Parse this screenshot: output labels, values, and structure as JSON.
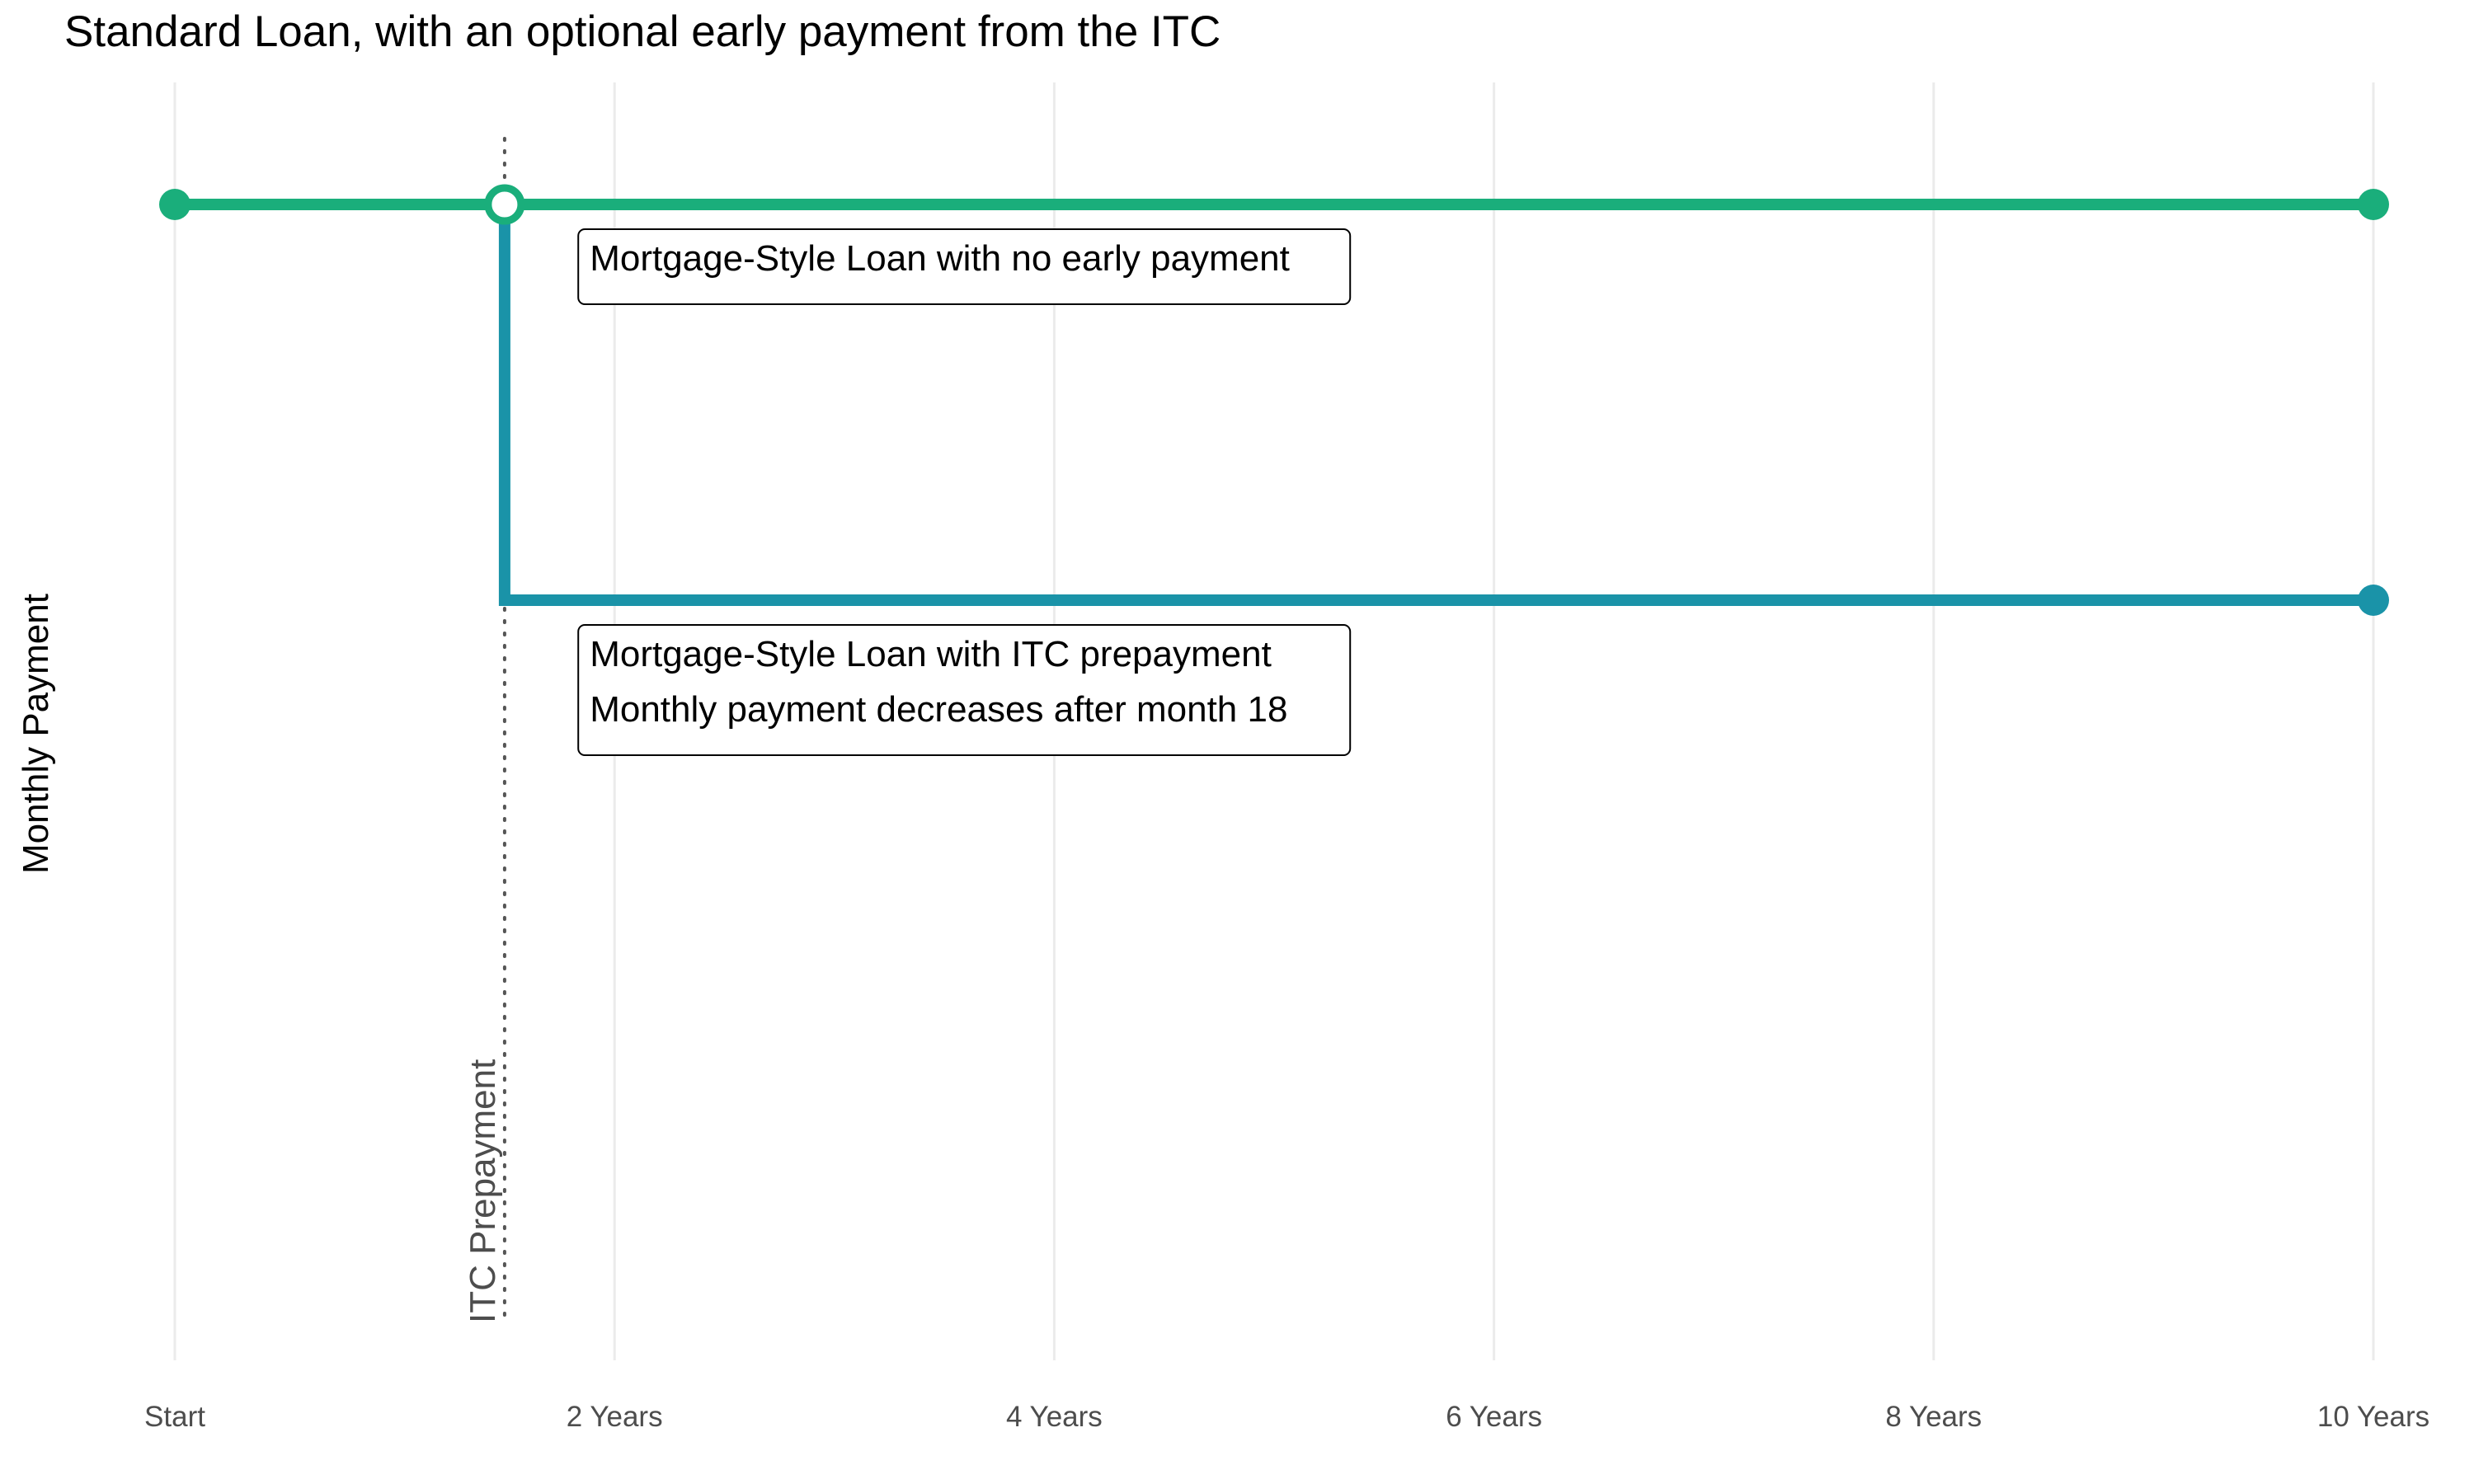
{
  "chart_data": {
    "type": "line",
    "title": "Standard Loan, with an optional early payment from the ITC",
    "ylabel": "Monthly Payment",
    "xlabel": "",
    "x_ticks": [
      {
        "value": 0,
        "label": "Start"
      },
      {
        "value": 2,
        "label": "2 Years"
      },
      {
        "value": 4,
        "label": "4 Years"
      },
      {
        "value": 6,
        "label": "6 Years"
      },
      {
        "value": 8,
        "label": "8 Years"
      },
      {
        "value": 10,
        "label": "10 Years"
      }
    ],
    "xlim": [
      0,
      10
    ],
    "ylim": [
      0,
      1
    ],
    "y_ticks_shown": false,
    "grid": "vertical major gridlines",
    "legend": "none",
    "series": [
      {
        "name": "Mortgage-Style Loan with no early payment",
        "color": "#1AAE7B",
        "points": [
          {
            "x": 0,
            "y": 1
          },
          {
            "x": 1.5,
            "y": 1
          },
          {
            "x": 10,
            "y": 1
          }
        ]
      },
      {
        "name": "Mortgage-Style Loan with ITC prepayment",
        "color": "#1A93A8",
        "points": [
          {
            "x": 1.5,
            "y": 1
          },
          {
            "x": 1.5,
            "y": 0.66
          },
          {
            "x": 10,
            "y": 0.66
          }
        ]
      }
    ],
    "reference_line": {
      "x": 1.5,
      "label": "ITC Prepayment",
      "style": "dotted",
      "color": "#555555"
    },
    "annotations": [
      {
        "x": 1.85,
        "y": 1,
        "lines": [
          "Mortgage-Style Loan with no early payment"
        ]
      },
      {
        "x": 1.85,
        "y": 0.66,
        "lines": [
          "Mortgage-Style Loan with ITC prepayment",
          "Monthly payment decreases after month 18"
        ]
      }
    ],
    "open_marker": {
      "x": 1.5,
      "y": 1
    }
  }
}
